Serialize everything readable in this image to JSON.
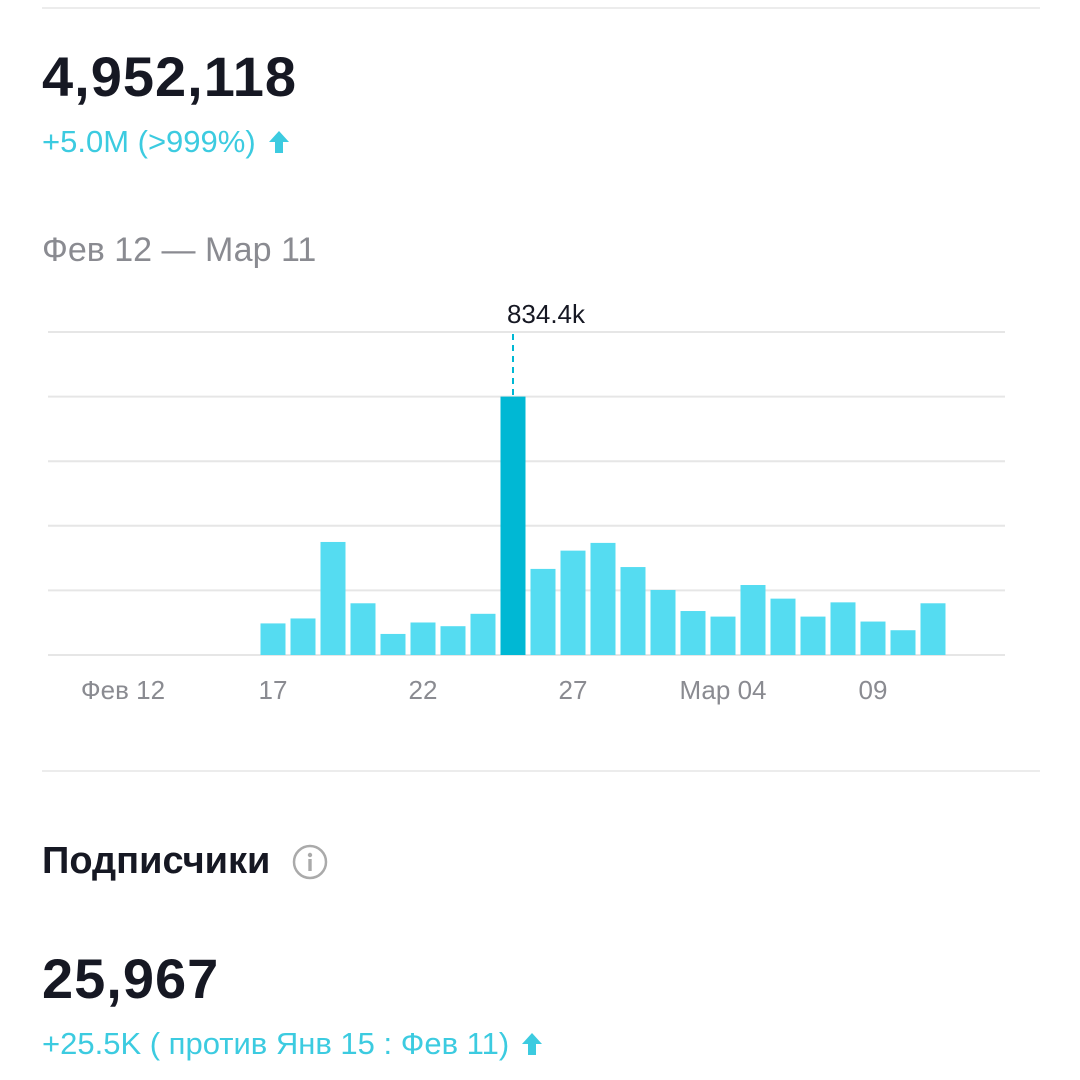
{
  "header": {
    "total": "4,952,118",
    "change": "+5.0M (>999%)",
    "date_range": "Фев 12 — Мар 11"
  },
  "chart_data": {
    "type": "bar",
    "categories": [
      "Фев 12",
      null,
      null,
      null,
      null,
      "17",
      null,
      null,
      null,
      null,
      "22",
      null,
      null,
      null,
      null,
      "27",
      null,
      null,
      null,
      null,
      "Мар 04",
      null,
      null,
      null,
      null,
      "09",
      null,
      null
    ],
    "values": [
      null,
      null,
      null,
      null,
      null,
      102,
      118,
      365,
      167,
      68,
      105,
      93,
      133,
      834.4,
      278,
      337,
      362,
      284,
      210,
      142,
      124,
      226,
      182,
      124,
      170,
      108,
      80,
      167
    ],
    "value_labels": [
      null,
      null,
      null,
      null,
      null,
      null,
      null,
      null,
      null,
      null,
      null,
      null,
      null,
      "834.4k",
      null,
      null,
      null,
      null,
      null,
      null,
      null,
      null,
      null,
      null,
      null,
      null,
      null,
      null
    ],
    "color": "#55dcf1",
    "highlight_color": "#00b8d4",
    "ylim": [
      0,
      1043
    ],
    "yticks": [
      0,
      208.6,
      417.2,
      625.8,
      834.4,
      1043
    ],
    "grid": true
  },
  "followers": {
    "title": "Подписчики",
    "value": "25,967",
    "change": "+25.5K ( против Янв 15 : Фев 11)"
  }
}
